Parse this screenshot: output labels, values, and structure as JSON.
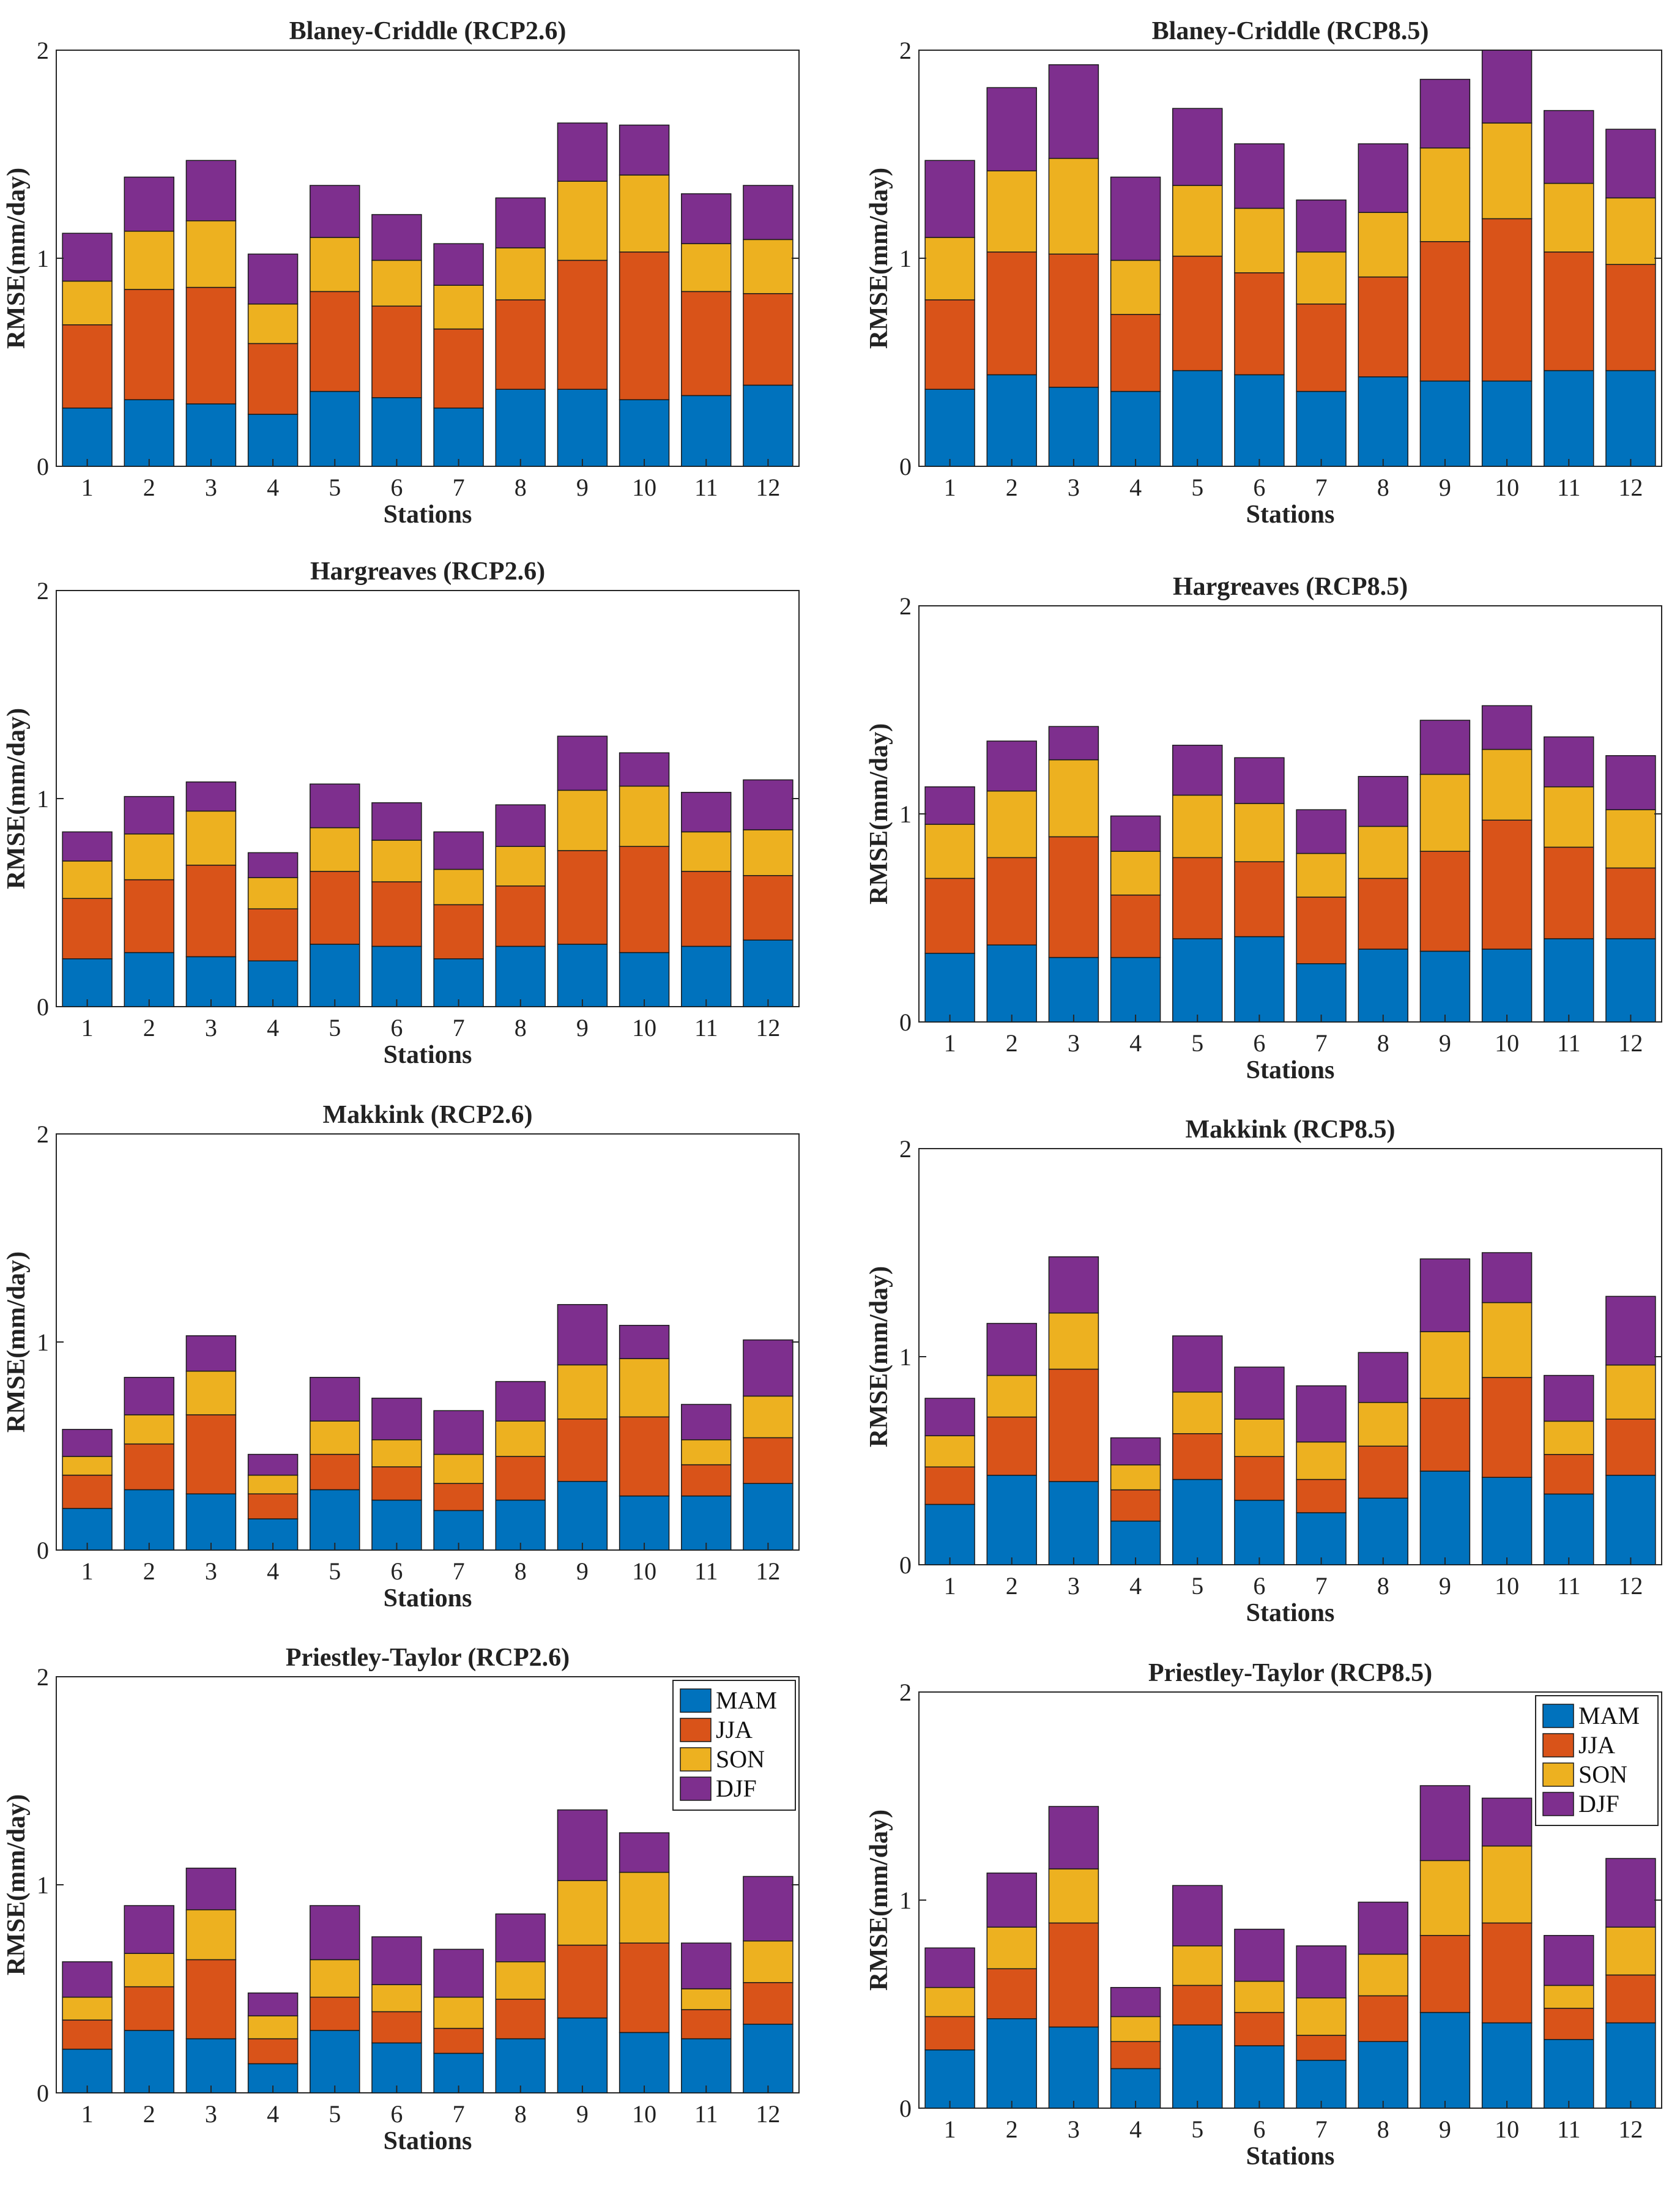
{
  "figure": {
    "seasons": [
      "MAM",
      "JJA",
      "SON",
      "DJF"
    ],
    "colors": {
      "MAM": "#0072BD",
      "JJA": "#D95319",
      "SON": "#EDB120",
      "DJF": "#7E2F8E"
    }
  },
  "chart_data": [
    {
      "type": "bar",
      "stacked": true,
      "title": "Blaney-Criddle (RCP2.6)",
      "xlabel": "Stations",
      "ylabel": "RMSE(mm/day)",
      "categories": [
        "1",
        "2",
        "3",
        "4",
        "5",
        "6",
        "7",
        "8",
        "9",
        "10",
        "11",
        "12"
      ],
      "ylim": [
        0,
        2
      ],
      "yticks": [
        0,
        1,
        2
      ],
      "legend": null,
      "series": [
        {
          "name": "MAM",
          "values": [
            0.28,
            0.32,
            0.3,
            0.25,
            0.36,
            0.33,
            0.28,
            0.37,
            0.37,
            0.32,
            0.34,
            0.39
          ]
        },
        {
          "name": "JJA",
          "values": [
            0.4,
            0.53,
            0.56,
            0.34,
            0.48,
            0.44,
            0.38,
            0.43,
            0.62,
            0.71,
            0.5,
            0.44
          ]
        },
        {
          "name": "SON",
          "values": [
            0.21,
            0.28,
            0.32,
            0.19,
            0.26,
            0.22,
            0.21,
            0.25,
            0.38,
            0.37,
            0.23,
            0.26
          ]
        },
        {
          "name": "DJF",
          "values": [
            0.23,
            0.26,
            0.29,
            0.24,
            0.25,
            0.22,
            0.2,
            0.24,
            0.28,
            0.24,
            0.24,
            0.26
          ]
        }
      ]
    },
    {
      "type": "bar",
      "stacked": true,
      "title": "Blaney-Criddle (RCP8.5)",
      "xlabel": "Stations",
      "ylabel": "RMSE(mm/day)",
      "categories": [
        "1",
        "2",
        "3",
        "4",
        "5",
        "6",
        "7",
        "8",
        "9",
        "10",
        "11",
        "12"
      ],
      "ylim": [
        0,
        2
      ],
      "yticks": [
        0,
        1,
        2
      ],
      "legend": null,
      "series": [
        {
          "name": "MAM",
          "values": [
            0.37,
            0.44,
            0.38,
            0.36,
            0.46,
            0.44,
            0.36,
            0.43,
            0.41,
            0.41,
            0.46,
            0.46
          ]
        },
        {
          "name": "JJA",
          "values": [
            0.43,
            0.59,
            0.64,
            0.37,
            0.55,
            0.49,
            0.42,
            0.48,
            0.67,
            0.78,
            0.57,
            0.51
          ]
        },
        {
          "name": "SON",
          "values": [
            0.3,
            0.39,
            0.46,
            0.26,
            0.34,
            0.31,
            0.25,
            0.31,
            0.45,
            0.46,
            0.33,
            0.32
          ]
        },
        {
          "name": "DJF",
          "values": [
            0.37,
            0.4,
            0.45,
            0.4,
            0.37,
            0.31,
            0.25,
            0.33,
            0.33,
            0.35,
            0.35,
            0.33
          ]
        }
      ]
    },
    {
      "type": "bar",
      "stacked": true,
      "title": "Hargreaves (RCP2.6)",
      "xlabel": "Stations",
      "ylabel": "RMSE(mm/day)",
      "categories": [
        "1",
        "2",
        "3",
        "4",
        "5",
        "6",
        "7",
        "8",
        "9",
        "10",
        "11",
        "12"
      ],
      "ylim": [
        0,
        2
      ],
      "yticks": [
        0,
        1,
        2
      ],
      "legend": null,
      "series": [
        {
          "name": "MAM",
          "values": [
            0.23,
            0.26,
            0.24,
            0.22,
            0.3,
            0.29,
            0.23,
            0.29,
            0.3,
            0.26,
            0.29,
            0.32
          ]
        },
        {
          "name": "JJA",
          "values": [
            0.29,
            0.35,
            0.44,
            0.25,
            0.35,
            0.31,
            0.26,
            0.29,
            0.45,
            0.51,
            0.36,
            0.31
          ]
        },
        {
          "name": "SON",
          "values": [
            0.18,
            0.22,
            0.26,
            0.15,
            0.21,
            0.2,
            0.17,
            0.19,
            0.29,
            0.29,
            0.19,
            0.22
          ]
        },
        {
          "name": "DJF",
          "values": [
            0.14,
            0.18,
            0.14,
            0.12,
            0.21,
            0.18,
            0.18,
            0.2,
            0.26,
            0.16,
            0.19,
            0.24
          ]
        }
      ]
    },
    {
      "type": "bar",
      "stacked": true,
      "title": "Hargreaves (RCP8.5)",
      "xlabel": "Stations",
      "ylabel": "RMSE(mm/day)",
      "categories": [
        "1",
        "2",
        "3",
        "4",
        "5",
        "6",
        "7",
        "8",
        "9",
        "10",
        "11",
        "12"
      ],
      "ylim": [
        0,
        2
      ],
      "yticks": [
        0,
        1,
        2
      ],
      "legend": null,
      "series": [
        {
          "name": "MAM",
          "values": [
            0.33,
            0.37,
            0.31,
            0.31,
            0.4,
            0.41,
            0.28,
            0.35,
            0.34,
            0.35,
            0.4,
            0.4
          ]
        },
        {
          "name": "JJA",
          "values": [
            0.36,
            0.42,
            0.58,
            0.3,
            0.39,
            0.36,
            0.32,
            0.34,
            0.48,
            0.62,
            0.44,
            0.34
          ]
        },
        {
          "name": "SON",
          "values": [
            0.26,
            0.32,
            0.37,
            0.21,
            0.3,
            0.28,
            0.21,
            0.25,
            0.37,
            0.34,
            0.29,
            0.28
          ]
        },
        {
          "name": "DJF",
          "values": [
            0.18,
            0.24,
            0.16,
            0.17,
            0.24,
            0.22,
            0.21,
            0.24,
            0.26,
            0.21,
            0.24,
            0.26
          ]
        }
      ]
    },
    {
      "type": "bar",
      "stacked": true,
      "title": "Makkink (RCP2.6)",
      "xlabel": "Stations",
      "ylabel": "RMSE(mm/day)",
      "categories": [
        "1",
        "2",
        "3",
        "4",
        "5",
        "6",
        "7",
        "8",
        "9",
        "10",
        "11",
        "12"
      ],
      "ylim": [
        0,
        2
      ],
      "yticks": [
        0,
        1,
        2
      ],
      "legend": null,
      "series": [
        {
          "name": "MAM",
          "values": [
            0.2,
            0.29,
            0.27,
            0.15,
            0.29,
            0.24,
            0.19,
            0.24,
            0.33,
            0.26,
            0.26,
            0.32
          ]
        },
        {
          "name": "JJA",
          "values": [
            0.16,
            0.22,
            0.38,
            0.12,
            0.17,
            0.16,
            0.13,
            0.21,
            0.3,
            0.38,
            0.15,
            0.22
          ]
        },
        {
          "name": "SON",
          "values": [
            0.09,
            0.14,
            0.21,
            0.09,
            0.16,
            0.13,
            0.14,
            0.17,
            0.26,
            0.28,
            0.12,
            0.2
          ]
        },
        {
          "name": "DJF",
          "values": [
            0.13,
            0.18,
            0.17,
            0.1,
            0.21,
            0.2,
            0.21,
            0.19,
            0.29,
            0.16,
            0.17,
            0.27
          ]
        }
      ]
    },
    {
      "type": "bar",
      "stacked": true,
      "title": "Makkink (RCP8.5)",
      "xlabel": "Stations",
      "ylabel": "RMSE(mm/day)",
      "categories": [
        "1",
        "2",
        "3",
        "4",
        "5",
        "6",
        "7",
        "8",
        "9",
        "10",
        "11",
        "12"
      ],
      "ylim": [
        0,
        2
      ],
      "yticks": [
        0,
        1,
        2
      ],
      "legend": null,
      "series": [
        {
          "name": "MAM",
          "values": [
            0.29,
            0.43,
            0.4,
            0.21,
            0.41,
            0.31,
            0.25,
            0.32,
            0.45,
            0.42,
            0.34,
            0.43
          ]
        },
        {
          "name": "JJA",
          "values": [
            0.18,
            0.28,
            0.54,
            0.15,
            0.22,
            0.21,
            0.16,
            0.25,
            0.35,
            0.48,
            0.19,
            0.27
          ]
        },
        {
          "name": "SON",
          "values": [
            0.15,
            0.2,
            0.27,
            0.12,
            0.2,
            0.18,
            0.18,
            0.21,
            0.32,
            0.36,
            0.16,
            0.26
          ]
        },
        {
          "name": "DJF",
          "values": [
            0.18,
            0.25,
            0.27,
            0.13,
            0.27,
            0.25,
            0.27,
            0.24,
            0.35,
            0.24,
            0.22,
            0.33
          ]
        }
      ]
    },
    {
      "type": "bar",
      "stacked": true,
      "title": "Priestley-Taylor (RCP2.6)",
      "xlabel": "Stations",
      "ylabel": "RMSE(mm/day)",
      "categories": [
        "1",
        "2",
        "3",
        "4",
        "5",
        "6",
        "7",
        "8",
        "9",
        "10",
        "11",
        "12"
      ],
      "ylim": [
        0,
        2
      ],
      "yticks": [
        0,
        1,
        2
      ],
      "legend": "top-right",
      "series": [
        {
          "name": "MAM",
          "values": [
            0.21,
            0.3,
            0.26,
            0.14,
            0.3,
            0.24,
            0.19,
            0.26,
            0.36,
            0.29,
            0.26,
            0.33
          ]
        },
        {
          "name": "JJA",
          "values": [
            0.14,
            0.21,
            0.38,
            0.12,
            0.16,
            0.15,
            0.12,
            0.19,
            0.35,
            0.43,
            0.14,
            0.2
          ]
        },
        {
          "name": "SON",
          "values": [
            0.11,
            0.16,
            0.24,
            0.11,
            0.18,
            0.13,
            0.15,
            0.18,
            0.31,
            0.34,
            0.1,
            0.2
          ]
        },
        {
          "name": "DJF",
          "values": [
            0.17,
            0.23,
            0.2,
            0.11,
            0.26,
            0.23,
            0.23,
            0.23,
            0.34,
            0.19,
            0.22,
            0.31
          ]
        }
      ]
    },
    {
      "type": "bar",
      "stacked": true,
      "title": "Priestley-Taylor (RCP8.5)",
      "xlabel": "Stations",
      "ylabel": "RMSE(mm/day)",
      "categories": [
        "1",
        "2",
        "3",
        "4",
        "5",
        "6",
        "7",
        "8",
        "9",
        "10",
        "11",
        "12"
      ],
      "ylim": [
        0,
        2
      ],
      "yticks": [
        0,
        1,
        2
      ],
      "legend": "top-right",
      "series": [
        {
          "name": "MAM",
          "values": [
            0.28,
            0.43,
            0.39,
            0.19,
            0.4,
            0.3,
            0.23,
            0.32,
            0.46,
            0.41,
            0.33,
            0.41
          ]
        },
        {
          "name": "JJA",
          "values": [
            0.16,
            0.24,
            0.5,
            0.13,
            0.19,
            0.16,
            0.12,
            0.22,
            0.37,
            0.48,
            0.15,
            0.23
          ]
        },
        {
          "name": "SON",
          "values": [
            0.14,
            0.2,
            0.26,
            0.12,
            0.19,
            0.15,
            0.18,
            0.2,
            0.36,
            0.37,
            0.11,
            0.23
          ]
        },
        {
          "name": "DJF",
          "values": [
            0.19,
            0.26,
            0.3,
            0.14,
            0.29,
            0.25,
            0.25,
            0.25,
            0.36,
            0.23,
            0.24,
            0.33
          ]
        }
      ]
    }
  ]
}
